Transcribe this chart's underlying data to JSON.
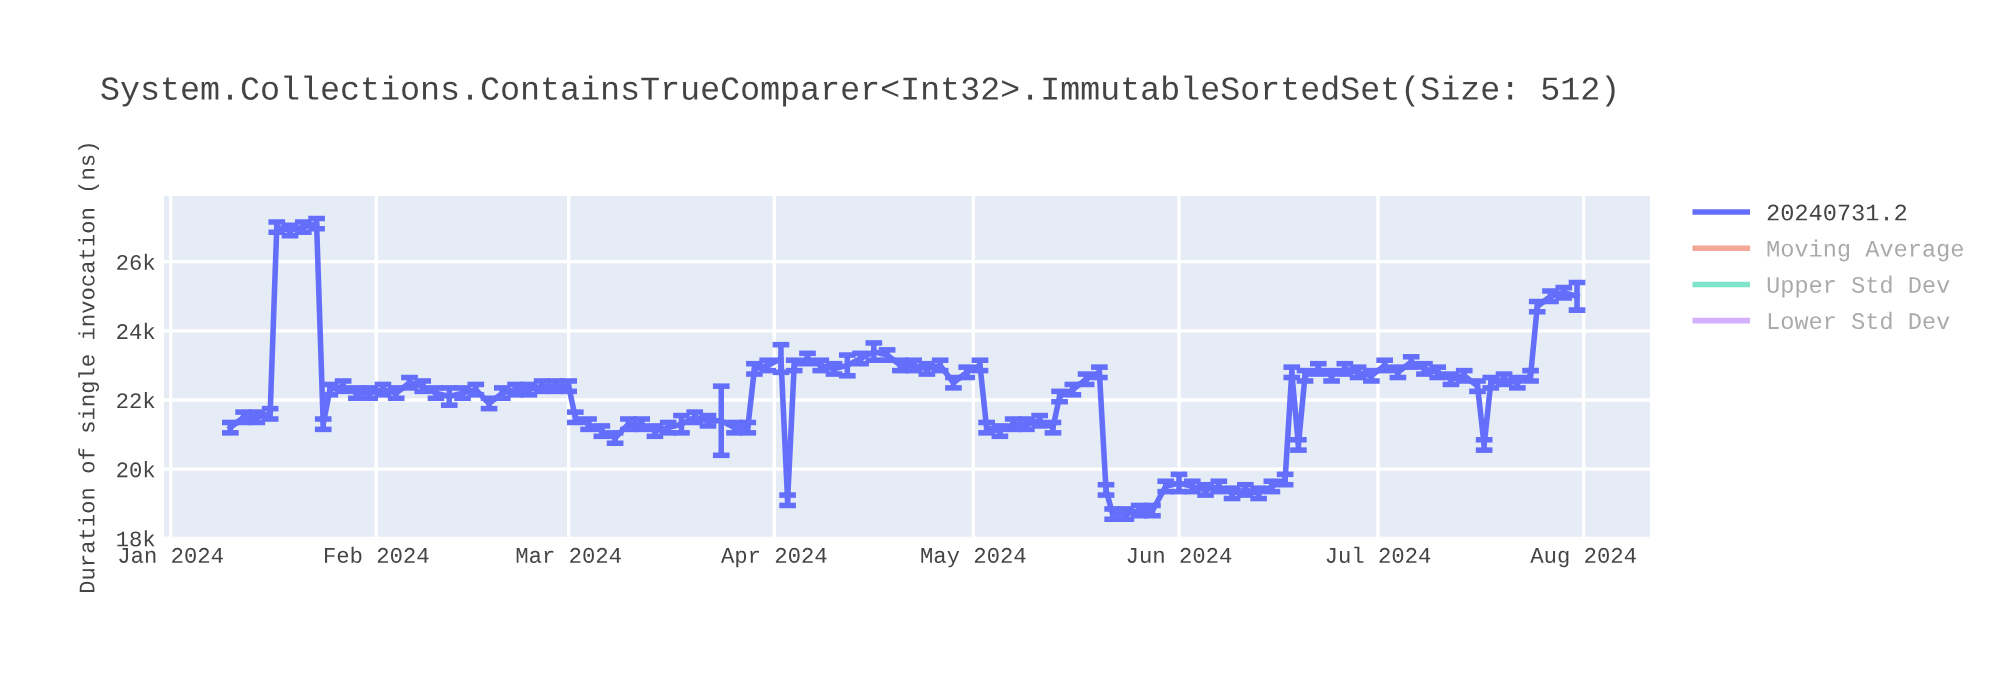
{
  "chart_data": {
    "type": "line",
    "title": "System.Collections.ContainsTrueComparer<Int32>.ImmutableSortedSet(Size: 512)",
    "ylabel": "Duration of single invocation (ns)",
    "x": [
      "2024-01-10",
      "2024-01-12",
      "2024-01-14",
      "2024-01-16",
      "2024-01-17",
      "2024-01-19",
      "2024-01-21",
      "2024-01-23",
      "2024-01-24",
      "2024-01-25",
      "2024-01-27",
      "2024-01-29",
      "2024-01-31",
      "2024-02-02",
      "2024-02-04",
      "2024-02-06",
      "2024-02-08",
      "2024-02-10",
      "2024-02-12",
      "2024-02-14",
      "2024-02-16",
      "2024-02-18",
      "2024-02-20",
      "2024-02-22",
      "2024-02-24",
      "2024-02-26",
      "2024-02-28",
      "2024-03-01",
      "2024-03-02",
      "2024-03-04",
      "2024-03-06",
      "2024-03-08",
      "2024-03-10",
      "2024-03-12",
      "2024-03-14",
      "2024-03-16",
      "2024-03-18",
      "2024-03-20",
      "2024-03-22",
      "2024-03-24",
      "2024-03-26",
      "2024-03-28",
      "2024-03-29",
      "2024-03-31",
      "2024-04-02",
      "2024-04-03",
      "2024-04-04",
      "2024-04-06",
      "2024-04-08",
      "2024-04-10",
      "2024-04-12",
      "2024-04-14",
      "2024-04-16",
      "2024-04-18",
      "2024-04-20",
      "2024-04-22",
      "2024-04-24",
      "2024-04-26",
      "2024-04-28",
      "2024-04-30",
      "2024-05-02",
      "2024-05-03",
      "2024-05-05",
      "2024-05-07",
      "2024-05-09",
      "2024-05-11",
      "2024-05-13",
      "2024-05-14",
      "2024-05-16",
      "2024-05-18",
      "2024-05-20",
      "2024-05-21",
      "2024-05-22",
      "2024-05-24",
      "2024-05-26",
      "2024-05-28",
      "2024-05-30",
      "2024-06-01",
      "2024-06-03",
      "2024-06-05",
      "2024-06-07",
      "2024-06-09",
      "2024-06-11",
      "2024-06-13",
      "2024-06-15",
      "2024-06-17",
      "2024-06-18",
      "2024-06-19",
      "2024-06-20",
      "2024-06-22",
      "2024-06-24",
      "2024-06-26",
      "2024-06-28",
      "2024-06-30",
      "2024-07-02",
      "2024-07-04",
      "2024-07-06",
      "2024-07-08",
      "2024-07-10",
      "2024-07-12",
      "2024-07-14",
      "2024-07-16",
      "2024-07-17",
      "2024-07-18",
      "2024-07-20",
      "2024-07-22",
      "2024-07-24",
      "2024-07-25",
      "2024-07-27",
      "2024-07-29",
      "2024-07-31"
    ],
    "series": [
      {
        "name": "20240731.2",
        "color": "#636efa",
        "values": [
          21200,
          21500,
          21500,
          21600,
          27000,
          26900,
          27000,
          27100,
          21300,
          22300,
          22400,
          22200,
          22200,
          22300,
          22200,
          22500,
          22400,
          22200,
          22100,
          22200,
          22300,
          21900,
          22200,
          22300,
          22300,
          22400,
          22400,
          22400,
          21500,
          21300,
          21100,
          20900,
          21300,
          21300,
          21100,
          21200,
          21300,
          21500,
          21400,
          21400,
          21200,
          21200,
          22900,
          23000,
          23200,
          19100,
          23000,
          23200,
          23000,
          22900,
          23000,
          23200,
          23400,
          23300,
          23000,
          23000,
          22900,
          23000,
          22500,
          22800,
          23000,
          21200,
          21100,
          21300,
          21300,
          21400,
          21200,
          22100,
          22300,
          22600,
          22800,
          19400,
          18700,
          18700,
          18800,
          18800,
          19500,
          19600,
          19500,
          19400,
          19500,
          19300,
          19400,
          19300,
          19500,
          19700,
          22800,
          20700,
          22700,
          22900,
          22700,
          22900,
          22800,
          22700,
          23000,
          22800,
          23100,
          22900,
          22800,
          22600,
          22700,
          22400,
          20700,
          22500,
          22600,
          22500,
          22700,
          24700,
          25000,
          25100,
          25000
        ],
        "errors": [
          150,
          150,
          150,
          150,
          150,
          150,
          150,
          150,
          150,
          150,
          150,
          150,
          150,
          150,
          150,
          150,
          150,
          150,
          250,
          150,
          150,
          150,
          150,
          150,
          150,
          150,
          150,
          150,
          150,
          150,
          150,
          150,
          150,
          150,
          150,
          150,
          250,
          150,
          150,
          1000,
          150,
          150,
          150,
          150,
          400,
          150,
          150,
          150,
          150,
          150,
          300,
          150,
          250,
          150,
          150,
          150,
          150,
          150,
          150,
          150,
          150,
          150,
          150,
          150,
          150,
          150,
          150,
          150,
          150,
          150,
          150,
          150,
          150,
          150,
          150,
          150,
          150,
          250,
          150,
          150,
          150,
          150,
          150,
          150,
          150,
          150,
          150,
          150,
          150,
          150,
          150,
          150,
          150,
          150,
          150,
          150,
          150,
          150,
          150,
          150,
          150,
          150,
          150,
          150,
          150,
          150,
          150,
          150,
          150,
          150,
          400
        ]
      },
      {
        "name": "Moving Average",
        "color": "#f4a898",
        "values": [
          null,
          null,
          null,
          null,
          null,
          null,
          null,
          null,
          null,
          null,
          null,
          null,
          null,
          null,
          null,
          null,
          null,
          null,
          null,
          null,
          null,
          null,
          null,
          null,
          null,
          null,
          null,
          null,
          null,
          null,
          null,
          null,
          null,
          null,
          null,
          null,
          null,
          null,
          null,
          null,
          null,
          null,
          null,
          null,
          null,
          null,
          null,
          null,
          null,
          null,
          null,
          null,
          null,
          null,
          null,
          null,
          null,
          null,
          null,
          null,
          null,
          null,
          null,
          null,
          null,
          null,
          null,
          null,
          null,
          null,
          null,
          null,
          null,
          null,
          null,
          null,
          null,
          null,
          null,
          null,
          null,
          null,
          null,
          null,
          null,
          null,
          null,
          null,
          null,
          null,
          null,
          null,
          null,
          null,
          null,
          null,
          null,
          null,
          null,
          null,
          null,
          null,
          null,
          null,
          null,
          null,
          null,
          null,
          null,
          null,
          null
        ]
      },
      {
        "name": "Upper Std Dev",
        "color": "#7fe5ca",
        "values": [
          null,
          null,
          null,
          null,
          null,
          null,
          null,
          null,
          null,
          null,
          null,
          null,
          null,
          null,
          null,
          null,
          null,
          null,
          null,
          null,
          null,
          null,
          null,
          null,
          null,
          null,
          null,
          null,
          null,
          null,
          null,
          null,
          null,
          null,
          null,
          null,
          null,
          null,
          null,
          null,
          null,
          null,
          null,
          null,
          null,
          null,
          null,
          null,
          null,
          null,
          null,
          null,
          null,
          null,
          null,
          null,
          null,
          null,
          null,
          null,
          null,
          null,
          null,
          null,
          null,
          null,
          null,
          null,
          null,
          null,
          null,
          null,
          null,
          null,
          null,
          null,
          null,
          null,
          null,
          null,
          null,
          null,
          null,
          null,
          null,
          null,
          null,
          null,
          null,
          null,
          null,
          null,
          null,
          null,
          null,
          null,
          null,
          null,
          null,
          null,
          null,
          null,
          null,
          null,
          null,
          null,
          null,
          null,
          null,
          null,
          null
        ]
      },
      {
        "name": "Lower Std Dev",
        "color": "#d4b0fc",
        "values": [
          null,
          null,
          null,
          null,
          null,
          null,
          null,
          null,
          null,
          null,
          null,
          null,
          null,
          null,
          null,
          null,
          null,
          null,
          null,
          null,
          null,
          null,
          null,
          null,
          null,
          null,
          null,
          null,
          null,
          null,
          null,
          null,
          null,
          null,
          null,
          null,
          null,
          null,
          null,
          null,
          null,
          null,
          null,
          null,
          null,
          null,
          null,
          null,
          null,
          null,
          null,
          null,
          null,
          null,
          null,
          null,
          null,
          null,
          null,
          null,
          null,
          null,
          null,
          null,
          null,
          null,
          null,
          null,
          null,
          null,
          null,
          null,
          null,
          null,
          null,
          null,
          null,
          null,
          null,
          null,
          null,
          null,
          null,
          null,
          null,
          null,
          null,
          null,
          null,
          null,
          null,
          null,
          null,
          null,
          null,
          null,
          null,
          null,
          null,
          null,
          null,
          null,
          null,
          null,
          null,
          null,
          null,
          null,
          null,
          null,
          null
        ]
      }
    ],
    "xlim": [
      "2023-12-31",
      "2024-08-11"
    ],
    "xticks": [
      {
        "value": "2024-01-01",
        "label": "Jan 2024"
      },
      {
        "value": "2024-02-01",
        "label": "Feb 2024"
      },
      {
        "value": "2024-03-01",
        "label": "Mar 2024"
      },
      {
        "value": "2024-04-01",
        "label": "Apr 2024"
      },
      {
        "value": "2024-05-01",
        "label": "May 2024"
      },
      {
        "value": "2024-06-01",
        "label": "Jun 2024"
      },
      {
        "value": "2024-07-01",
        "label": "Jul 2024"
      },
      {
        "value": "2024-08-01",
        "label": "Aug 2024"
      }
    ],
    "ylim": [
      18000,
      27900
    ],
    "yticks": [
      {
        "value": 18000,
        "label": "18k"
      },
      {
        "value": 20000,
        "label": "20k"
      },
      {
        "value": 22000,
        "label": "22k"
      },
      {
        "value": 24000,
        "label": "24k"
      },
      {
        "value": 26000,
        "label": "26k"
      }
    ],
    "grid": true,
    "legend": "top right",
    "marker": "none",
    "line_style": "solid"
  }
}
